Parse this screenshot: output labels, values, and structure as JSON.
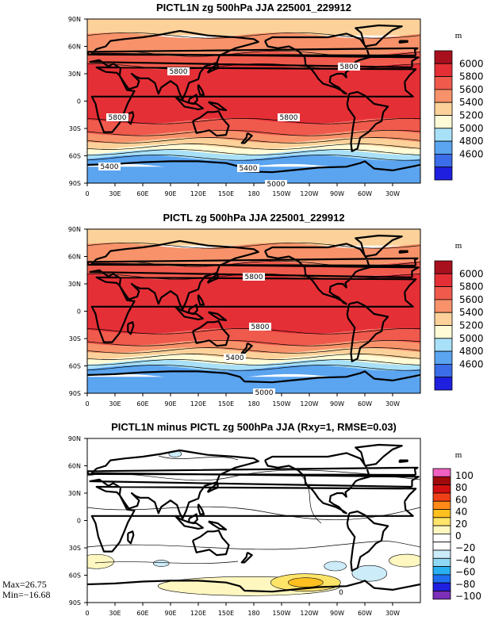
{
  "colors": {
    "full_field": [
      "#1f1fe0",
      "#3b6de8",
      "#5aa4f0",
      "#a8e0f8",
      "#fffbd6",
      "#fcd29a",
      "#f7926a",
      "#ef5a4c",
      "#e52f36",
      "#a8101e"
    ],
    "diff_field": [
      "#7d2fb8",
      "#1f1fe0",
      "#1f6ef0",
      "#2ab0f0",
      "#8fd8f4",
      "#cdecfa",
      "#ffffff",
      "#ffffff",
      "#fff7c0",
      "#ffe46a",
      "#ffc020",
      "#ff8a18",
      "#f04018",
      "#d01010",
      "#a00a0a",
      "#f060c0"
    ]
  },
  "chart_data": [
    {
      "type": "heatmap",
      "title": "PICTL1N zg 500hPa JJA 225001_229912",
      "unit": "m",
      "x_ticks": [
        "0",
        "30E",
        "60E",
        "90E",
        "120E",
        "150E",
        "180",
        "150W",
        "120W",
        "90W",
        "60W",
        "30W"
      ],
      "y_ticks": [
        "90N",
        "60N",
        "30N",
        "0",
        "30S",
        "60S",
        "90S"
      ],
      "colorbar_levels": [
        "6000",
        "5800",
        "5600",
        "5400",
        "5200",
        "5000",
        "4800",
        "4600"
      ],
      "contour_labels": [
        "5800",
        "5800",
        "5800",
        "5800",
        "5400",
        "5400",
        "5000"
      ],
      "zonal_bands_lat": [
        {
          "from": 90,
          "to": 72,
          "level": "5400-5600"
        },
        {
          "from": 72,
          "to": 52,
          "level": "5600-5800"
        },
        {
          "from": 52,
          "to": -22,
          "level": "5800-6000"
        },
        {
          "from": -22,
          "to": -35,
          "level": "5600-5800"
        },
        {
          "from": -35,
          "to": -43,
          "level": "5400-5600"
        },
        {
          "from": -43,
          "to": -52,
          "level": "5200-5400"
        },
        {
          "from": -52,
          "to": -62,
          "level": "5000-5200"
        },
        {
          "from": -62,
          "to": -72,
          "level": "4800-5000"
        },
        {
          "from": -72,
          "to": -90,
          "level": "4800-5000"
        }
      ]
    },
    {
      "type": "heatmap",
      "title": "PICTL zg 500hPa JJA 225001_229912",
      "unit": "m",
      "x_ticks": [
        "0",
        "30E",
        "60E",
        "90E",
        "120E",
        "150E",
        "180",
        "150W",
        "120W",
        "90W",
        "60W",
        "30W"
      ],
      "y_ticks": [
        "90N",
        "60N",
        "30N",
        "0",
        "30S",
        "60S",
        "90S"
      ],
      "colorbar_levels": [
        "6000",
        "5800",
        "5600",
        "5400",
        "5200",
        "5000",
        "4800",
        "4600"
      ],
      "contour_labels": [
        "5800",
        "5800",
        "5400",
        "5000"
      ],
      "zonal_bands_lat": [
        {
          "from": 90,
          "to": 72,
          "level": "5400-5600"
        },
        {
          "from": 72,
          "to": 52,
          "level": "5600-5800"
        },
        {
          "from": 52,
          "to": -22,
          "level": "5800-6000"
        },
        {
          "from": -22,
          "to": -35,
          "level": "5600-5800"
        },
        {
          "from": -35,
          "to": -43,
          "level": "5400-5600"
        },
        {
          "from": -43,
          "to": -52,
          "level": "5200-5400"
        },
        {
          "from": -52,
          "to": -62,
          "level": "5000-5200"
        },
        {
          "from": -62,
          "to": -90,
          "level": "4800-5000"
        }
      ]
    },
    {
      "type": "heatmap",
      "title": "PICTL1N minus PICTL zg 500hPa JJA (Rxy=1, RMSE=0.03)",
      "unit": "m",
      "x_ticks": [
        "0",
        "30E",
        "60E",
        "90E",
        "120E",
        "150E",
        "180",
        "150W",
        "120W",
        "90W",
        "60W",
        "30W"
      ],
      "y_ticks": [
        "90N",
        "60N",
        "30N",
        "0",
        "30S",
        "60S",
        "90S"
      ],
      "colorbar_levels": [
        "100",
        "80",
        "60",
        "40",
        "20",
        "0",
        "−20",
        "−40",
        "−60",
        "−80",
        "−100"
      ],
      "contour_labels": [
        "0"
      ],
      "max_label": "Max=26.75",
      "min_label": "Min=−16.68"
    }
  ]
}
